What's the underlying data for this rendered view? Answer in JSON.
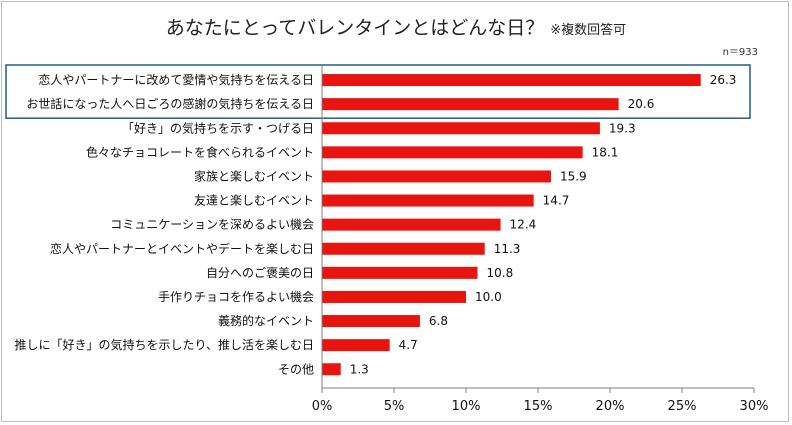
{
  "chart_data": {
    "type": "bar",
    "orientation": "horizontal",
    "title": "あなたにとってバレンタインとはどんな日？",
    "subtitle": "※複数回答可",
    "sample_size": "n＝933",
    "categories": [
      "恋人やパートナーに改めて愛情や気持ちを伝える日",
      "お世話になった人へ日ごろの感謝の気持ちを伝える日",
      "「好き」の気持ちを示す・つげる日",
      "色々なチョコレートを食べられるイベント",
      "家族と楽しむイベント",
      "友達と楽しむイベント",
      "コミュニケーションを深めるよい機会",
      "恋人やパートナーとイベントやデートを楽しむ日",
      "自分へのご褒美の日",
      "手作りチョコを作るよい機会",
      "義務的なイベント",
      "推しに「好き」の気持ちを示したり、推し活を楽しむ日",
      "その他"
    ],
    "values": [
      26.3,
      20.6,
      19.3,
      18.1,
      15.9,
      14.7,
      12.4,
      11.3,
      10.8,
      10.0,
      6.8,
      4.7,
      1.3
    ],
    "value_labels": [
      "26.3",
      "20.6",
      "19.3",
      "18.1",
      "15.9",
      "14.7",
      "12.4",
      "11.3",
      "10.8",
      "10.0",
      "6.8",
      "4.7",
      "1.3"
    ],
    "xlim": [
      0,
      30
    ],
    "xticks": [
      "0%",
      "5%",
      "10%",
      "15%",
      "20%",
      "25%",
      "30%"
    ],
    "grid": false,
    "highlighted_categories": [
      0,
      1
    ],
    "colors": {
      "bar": "#e8140f",
      "highlight_box": "#1f5f8b",
      "axis": "#7f7f7f"
    }
  }
}
